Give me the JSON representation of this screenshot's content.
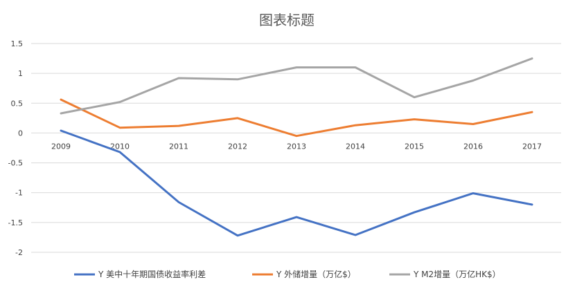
{
  "chart_data": {
    "type": "line",
    "title": "图表标题",
    "categories": [
      "2009",
      "2010",
      "2011",
      "2012",
      "2013",
      "2014",
      "2015",
      "2016",
      "2017"
    ],
    "ylim": [
      -2,
      1.5
    ],
    "yticks": [
      -2,
      -1.5,
      -1,
      -0.5,
      0,
      0.5,
      1,
      1.5
    ],
    "ytick_labels": [
      "-2",
      "-1.5",
      "-1",
      "-0.5",
      "0",
      "0.5",
      "1",
      "1.5"
    ],
    "grid": true,
    "legend_position": "bottom",
    "series": [
      {
        "name": "Y 美中十年期国债收益率利差",
        "color": "#4472c4",
        "values": [
          0.04,
          -0.32,
          -1.16,
          -1.72,
          -1.41,
          -1.71,
          -1.33,
          -1.01,
          -1.2
        ]
      },
      {
        "name": "Y 外储增量（万亿$）",
        "color": "#ed7d31",
        "values": [
          0.56,
          0.09,
          0.12,
          0.25,
          -0.05,
          0.13,
          0.23,
          0.15,
          0.35
        ]
      },
      {
        "name": "Y M2增量（万亿HK$）",
        "color": "#a5a5a5",
        "values": [
          0.33,
          0.52,
          0.92,
          0.9,
          1.1,
          1.1,
          0.6,
          0.88,
          1.25
        ]
      }
    ]
  }
}
